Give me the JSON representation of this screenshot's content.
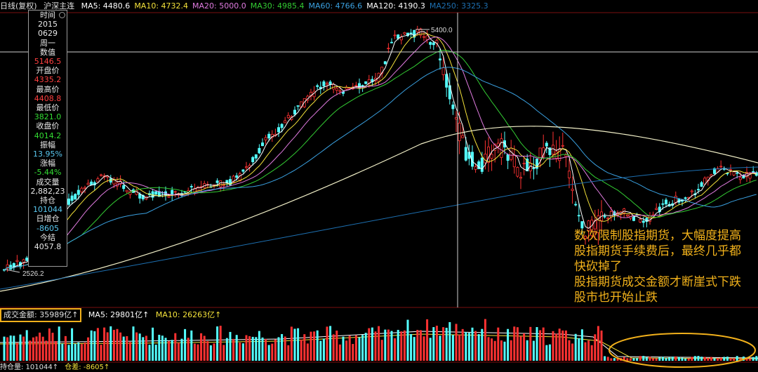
{
  "header": {
    "title": "日线(复权)",
    "instrument": "沪深主连",
    "ma": [
      {
        "label": "MA5: 4480.6",
        "color": "#ffffff"
      },
      {
        "label": "MA10: 4732.4",
        "color": "#f4e23a"
      },
      {
        "label": "MA20: 5000.0",
        "color": "#e07be0"
      },
      {
        "label": "MA30: 4985.4",
        "color": "#33cc33"
      },
      {
        "label": "MA60: 4766.6",
        "color": "#3aa0e0"
      },
      {
        "label": "MA120: 4190.3",
        "color": "#ffffff"
      },
      {
        "label": "MA250: 3325.3",
        "color": "#1d6fb0"
      }
    ]
  },
  "info_panel": {
    "items": [
      {
        "text": "时间",
        "color": "#e8e8e8"
      },
      {
        "text": "2015",
        "color": "#e8e8e8"
      },
      {
        "text": "0629",
        "color": "#e8e8e8"
      },
      {
        "text": "周一",
        "color": "#e8e8e8"
      },
      {
        "text": "数值",
        "color": "#e8e8e8"
      },
      {
        "text": "5146.5",
        "color": "#ff4040"
      },
      {
        "text": "开盘价",
        "color": "#e8e8e8"
      },
      {
        "text": "4335.2",
        "color": "#ff4040"
      },
      {
        "text": "最高价",
        "color": "#e8e8e8"
      },
      {
        "text": "4408.8",
        "color": "#ff4040"
      },
      {
        "text": "最低价",
        "color": "#e8e8e8"
      },
      {
        "text": "3821.0",
        "color": "#33dd33"
      },
      {
        "text": "收盘价",
        "color": "#e8e8e8"
      },
      {
        "text": "4014.2",
        "color": "#33dd33"
      },
      {
        "text": "振幅",
        "color": "#e8e8e8"
      },
      {
        "text": "13.95%",
        "color": "#5ac8f0"
      },
      {
        "text": "涨幅",
        "color": "#e8e8e8"
      },
      {
        "text": "-5.44%",
        "color": "#33dd33"
      },
      {
        "text": "成交量",
        "color": "#e8e8e8"
      },
      {
        "text": "2,882,23",
        "color": "#e8e8e8"
      },
      {
        "text": "持仓",
        "color": "#e8e8e8"
      },
      {
        "text": "101044",
        "color": "#5ac8f0"
      },
      {
        "text": "日增仓",
        "color": "#e8e8e8"
      },
      {
        "text": "-8605",
        "color": "#5ac8f0"
      },
      {
        "text": "今结",
        "color": "#e8e8e8"
      },
      {
        "text": "4057.8",
        "color": "#e8e8e8"
      }
    ]
  },
  "price_labels": {
    "high": "5400.0",
    "low": "2526.2"
  },
  "annotation": {
    "lines": [
      "数次限制股指期货，大幅度提高",
      "股指期货手续费后，最终几乎都",
      "快砍掉了",
      "股指期货成交金额才断崖式下跌",
      "股市也开始止跌"
    ]
  },
  "volume_bar": {
    "amount": "成交金额: 35989亿↑",
    "ma5": "MA5: 29801亿↑",
    "ma10": "MA10: 26263亿↑"
  },
  "bottom_bar": {
    "holding": "持仓量: 101044↑",
    "diff": "仓差: -8605↑"
  },
  "colors": {
    "up": "#ff3232",
    "down": "#54ffff",
    "annotation": "#f2b21b",
    "highlight": "#f1b01b"
  }
}
